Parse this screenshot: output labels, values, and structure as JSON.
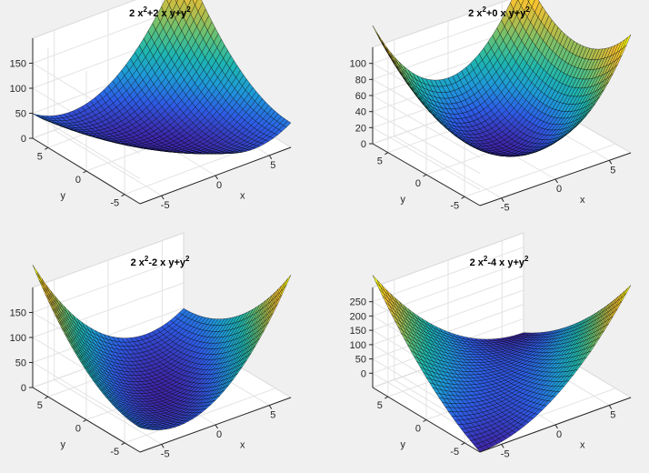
{
  "figure": {
    "background": "#f0f0f0",
    "colormap": [
      "#3e26a8",
      "#2d5de6",
      "#1e9ad8",
      "#1eb6b0",
      "#5ec17a",
      "#b5bd4a",
      "#f5c133",
      "#f9fb0e"
    ],
    "edge_color": "#000000"
  },
  "chart_data": [
    {
      "type": "surface",
      "title_parts": [
        "2 x",
        "2",
        "+2 x y+y",
        "2"
      ],
      "formula": {
        "a": 2,
        "b": 2,
        "c": 1
      },
      "x": {
        "min": -7,
        "max": 7,
        "ticks": [
          -5,
          0,
          5
        ],
        "label": "x"
      },
      "y": {
        "min": -7,
        "max": 7,
        "ticks": [
          -5,
          0,
          5
        ],
        "label": "y"
      },
      "z": {
        "min": 0,
        "max": 200,
        "ticks": [
          0,
          50,
          100,
          150
        ],
        "label": ""
      },
      "grid": true
    },
    {
      "type": "surface",
      "title_parts": [
        "2 x",
        "2",
        "+0 x y+y",
        "2"
      ],
      "formula": {
        "a": 2,
        "b": 0,
        "c": 1
      },
      "x": {
        "min": -7,
        "max": 7,
        "ticks": [
          -5,
          0,
          5
        ],
        "label": "x"
      },
      "y": {
        "min": -7,
        "max": 7,
        "ticks": [
          -5,
          0,
          5
        ],
        "label": "y"
      },
      "z": {
        "min": 0,
        "max": 120,
        "ticks": [
          0,
          20,
          40,
          60,
          80,
          100
        ],
        "label": ""
      },
      "grid": true
    },
    {
      "type": "surface",
      "title_parts": [
        "2 x",
        "2",
        "-2 x y+y",
        "2"
      ],
      "formula": {
        "a": 2,
        "b": -2,
        "c": 1
      },
      "x": {
        "min": -7,
        "max": 7,
        "ticks": [
          -5,
          0,
          5
        ],
        "label": "x"
      },
      "y": {
        "min": -7,
        "max": 7,
        "ticks": [
          -5,
          0,
          5
        ],
        "label": "y"
      },
      "z": {
        "min": 0,
        "max": 200,
        "ticks": [
          0,
          50,
          100,
          150
        ],
        "label": ""
      },
      "grid": true
    },
    {
      "type": "surface",
      "title_parts": [
        "2 x",
        "2",
        "-4 x y+y",
        "2"
      ],
      "formula": {
        "a": 2,
        "b": -4,
        "c": 1
      },
      "x": {
        "min": -7,
        "max": 7,
        "ticks": [
          -5,
          0,
          5
        ],
        "label": "x"
      },
      "y": {
        "min": -7,
        "max": 7,
        "ticks": [
          -5,
          0,
          5
        ],
        "label": "y"
      },
      "z": {
        "min": -50,
        "max": 300,
        "ticks": [
          0,
          50,
          100,
          150,
          200,
          250
        ],
        "label": ""
      },
      "grid": true
    }
  ]
}
